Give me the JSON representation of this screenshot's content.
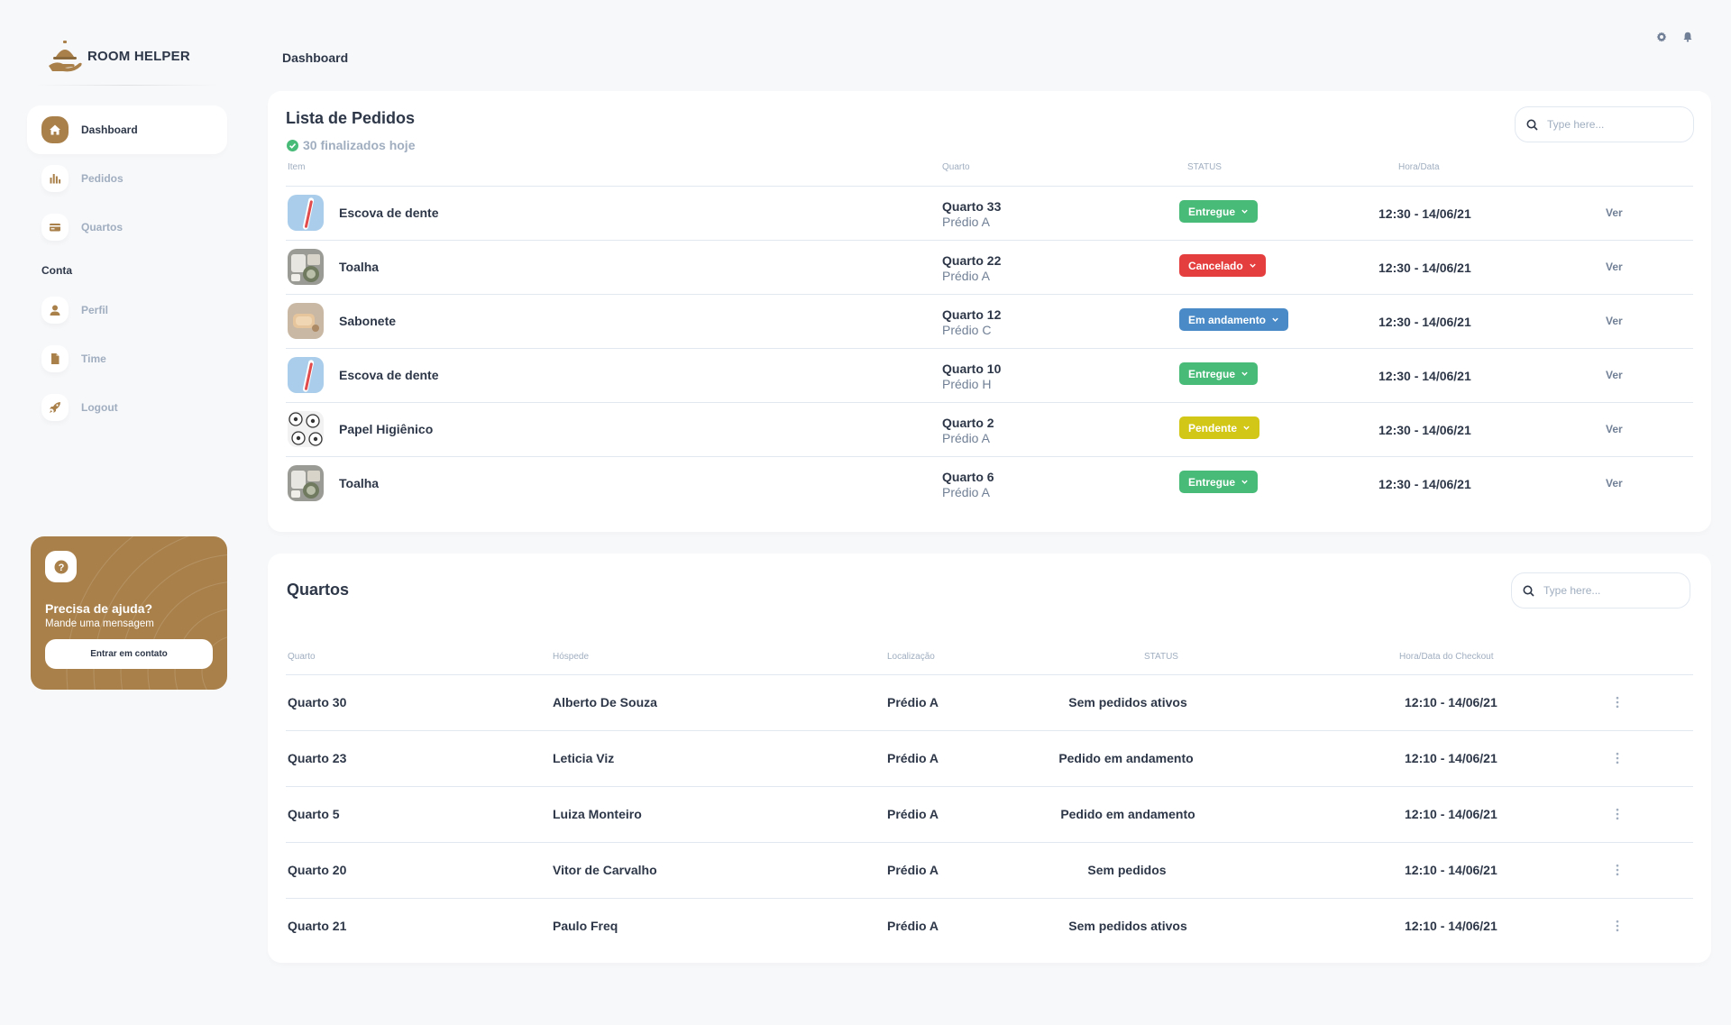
{
  "app": {
    "name": "ROOM HELPER"
  },
  "sidebar": {
    "items": [
      {
        "label": "Dashboard",
        "icon": "home-icon",
        "active": true
      },
      {
        "label": "Pedidos",
        "icon": "chart-icon",
        "active": false
      },
      {
        "label": "Quartos",
        "icon": "card-icon",
        "active": false
      }
    ],
    "section_label": "Conta",
    "account_items": [
      {
        "label": "Perfil",
        "icon": "user-icon"
      },
      {
        "label": "Time",
        "icon": "document-icon"
      },
      {
        "label": "Logout",
        "icon": "rocket-icon"
      }
    ]
  },
  "help": {
    "title": "Precisa de ajuda?",
    "subtitle": "Mande uma mensagem",
    "button": "Entrar em contato",
    "icon_glyph": "?"
  },
  "header": {
    "title": "Dashboard",
    "icons": [
      "settings-icon",
      "bell-icon"
    ]
  },
  "orders": {
    "title": "Lista de Pedidos",
    "subtitle": "30 finalizados hoje",
    "search_placeholder": "Type here...",
    "columns": {
      "item": "Item",
      "room": "Quarto",
      "status": "STATUS",
      "datetime": "Hora/Data"
    },
    "rows": [
      {
        "item": "Escova de dente",
        "thumb": "toothbrush",
        "room": "Quarto 33",
        "building": "Prédio A",
        "status": "Entregue",
        "status_color": "#48bb78",
        "datetime": "12:30 - 14/06/21",
        "action": "Ver"
      },
      {
        "item": "Toalha",
        "thumb": "towel",
        "room": "Quarto 22",
        "building": "Prédio A",
        "status": "Cancelado",
        "status_color": "#e53e3e",
        "datetime": "12:30 - 14/06/21",
        "action": "Ver"
      },
      {
        "item": "Sabonete",
        "thumb": "soap",
        "room": "Quarto 12",
        "building": "Prédio C",
        "status": "Em andamento",
        "status_color": "#4a8bc7",
        "datetime": "12:30 - 14/06/21",
        "action": "Ver"
      },
      {
        "item": "Escova de dente",
        "thumb": "toothbrush",
        "room": "Quarto 10",
        "building": "Prédio H",
        "status": "Entregue",
        "status_color": "#48bb78",
        "datetime": "12:30 - 14/06/21",
        "action": "Ver"
      },
      {
        "item": "Papel Higiênico",
        "thumb": "toilet-paper",
        "room": "Quarto 2",
        "building": "Prédio A",
        "status": "Pendente",
        "status_color": "#d2c616",
        "datetime": "12:30 - 14/06/21",
        "action": "Ver"
      },
      {
        "item": "Toalha",
        "thumb": "towel",
        "room": "Quarto 6",
        "building": "Prédio A",
        "status": "Entregue",
        "status_color": "#48bb78",
        "datetime": "12:30 - 14/06/21",
        "action": "Ver"
      }
    ]
  },
  "rooms": {
    "title": "Quartos",
    "search_placeholder": "Type here...",
    "columns": {
      "room": "Quarto",
      "guest": "Hóspede",
      "location": "Localização",
      "status": "STATUS",
      "checkout": "Hora/Data do Checkout"
    },
    "rows": [
      {
        "room": "Quarto 30",
        "guest": "Alberto De Souza",
        "location": "Prédio A",
        "status": "Sem pedidos ativos",
        "checkout": "12:10 - 14/06/21"
      },
      {
        "room": "Quarto 23",
        "guest": "Leticia Viz",
        "location": "Prédio A",
        "status": "Pedido em andamento",
        "checkout": "12:10 - 14/06/21"
      },
      {
        "room": "Quarto 5",
        "guest": "Luiza Monteiro",
        "location": "Prédio A",
        "status": "Pedido em andamento",
        "checkout": "12:10 - 14/06/21"
      },
      {
        "room": "Quarto 20",
        "guest": "Vitor de Carvalho",
        "location": "Prédio A",
        "status": "Sem pedidos",
        "checkout": "12:10 - 14/06/21"
      },
      {
        "room": "Quarto 21",
        "guest": "Paulo Freq",
        "location": "Prédio A",
        "status": "Sem pedidos ativos",
        "checkout": "12:10 - 14/06/21"
      }
    ]
  },
  "colors": {
    "accent": "#a9804a",
    "text": "#2d3748",
    "muted": "#a0aec0",
    "success": "#48bb78"
  }
}
